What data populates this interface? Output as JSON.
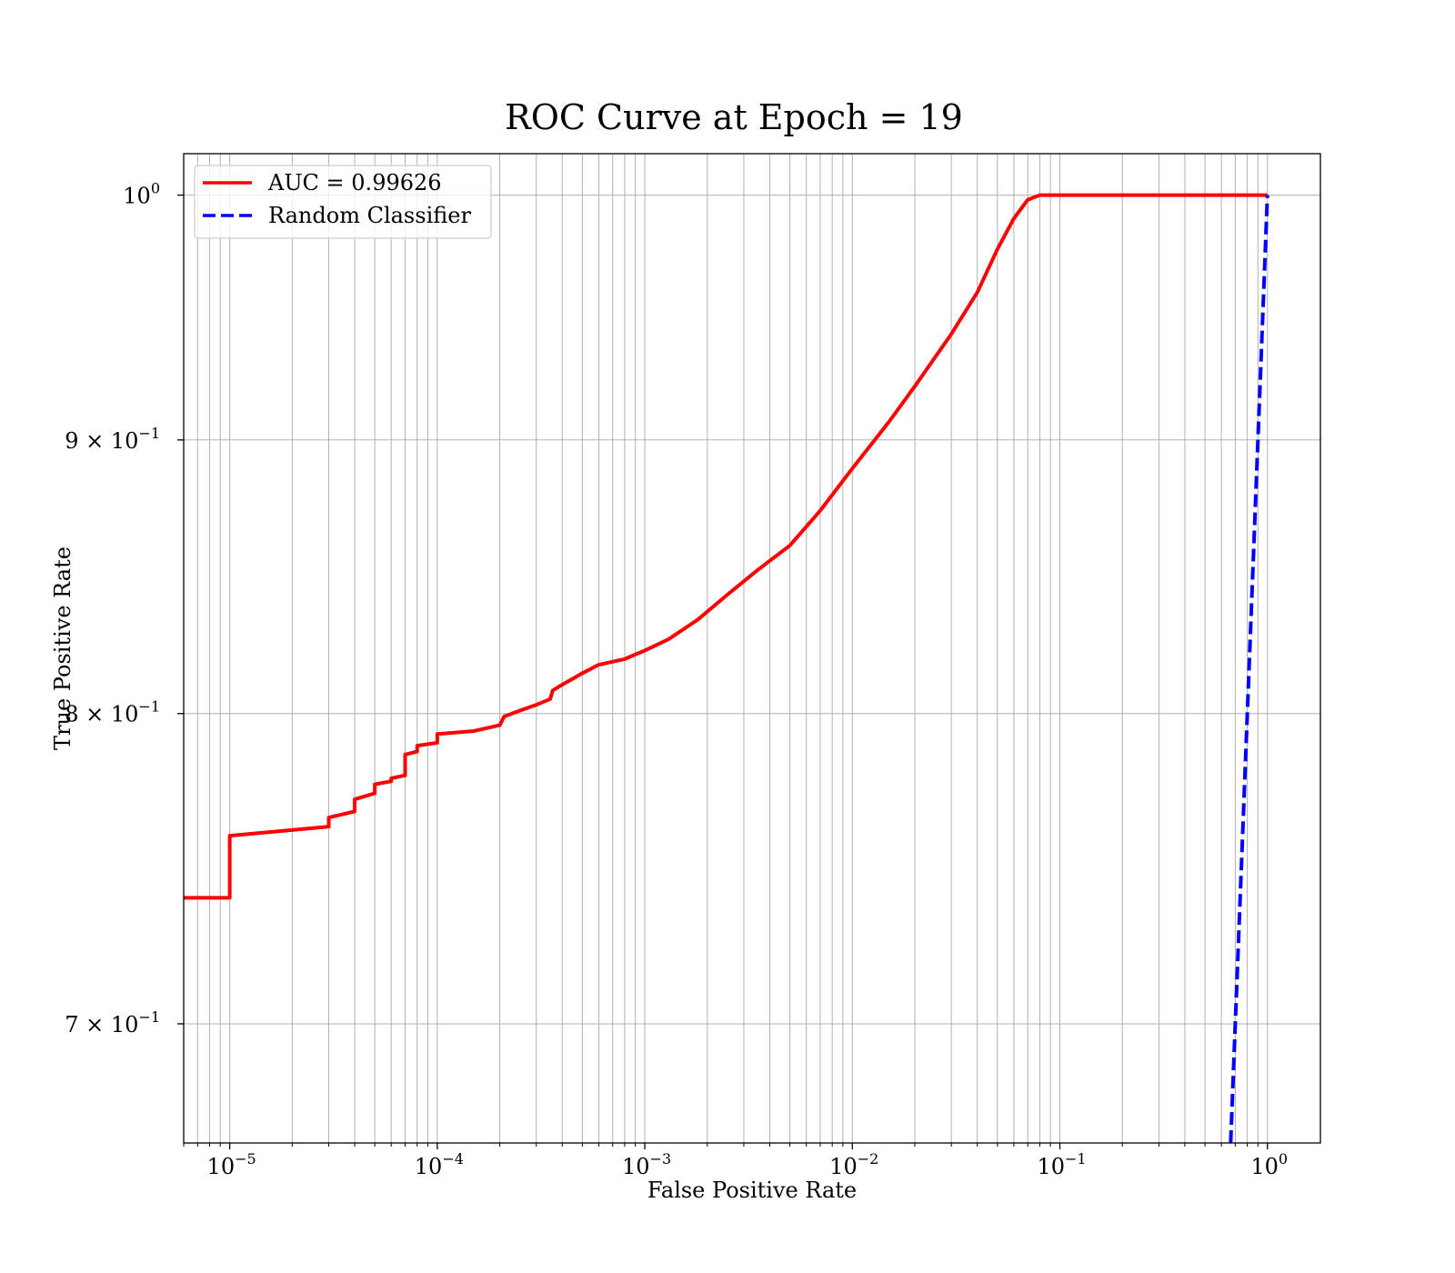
{
  "chart_data": {
    "type": "line",
    "title": "ROC Curve at Epoch = 19",
    "xlabel": "False Positive Rate",
    "ylabel": "True Positive Rate",
    "xscale": "log",
    "yscale": "log",
    "xlim": [
      6e-06,
      1.8
    ],
    "ylim": [
      0.665,
      1.018
    ],
    "grid": "both",
    "legend_position": "top-left",
    "x_ticks": [
      {
        "value": 1e-05,
        "base": "10",
        "exp": "−5"
      },
      {
        "value": 0.0001,
        "base": "10",
        "exp": "−4"
      },
      {
        "value": 0.001,
        "base": "10",
        "exp": "−3"
      },
      {
        "value": 0.01,
        "base": "10",
        "exp": "−2"
      },
      {
        "value": 0.1,
        "base": "10",
        "exp": "−1"
      },
      {
        "value": 1,
        "base": "10",
        "exp": "0"
      }
    ],
    "y_ticks": [
      {
        "value": 1.0,
        "base": "10",
        "exp": "0"
      },
      {
        "value": 0.9,
        "base": "9 × 10",
        "exp": "−1"
      },
      {
        "value": 0.8,
        "base": "8 × 10",
        "exp": "−1"
      },
      {
        "value": 0.7,
        "base": "7 × 10",
        "exp": "−1"
      }
    ],
    "series": [
      {
        "name": "AUC = 0.99626",
        "color": "#ff0000",
        "style": "solid",
        "x": [
          6e-06,
          1e-05,
          1e-05,
          3e-05,
          3e-05,
          4e-05,
          4e-05,
          5e-05,
          5e-05,
          6e-05,
          6e-05,
          7e-05,
          7e-05,
          8e-05,
          8e-05,
          0.0001,
          0.0001,
          0.00015,
          0.0002,
          0.00021,
          0.00025,
          0.0003,
          0.00035,
          0.00036,
          0.0004,
          0.0005,
          0.0006,
          0.0008,
          0.001,
          0.0013,
          0.0018,
          0.0025,
          0.0035,
          0.005,
          0.007,
          0.01,
          0.015,
          0.02,
          0.03,
          0.04,
          0.05,
          0.06,
          0.07,
          0.08,
          0.1,
          0.3,
          1.0
        ],
        "y": [
          0.739,
          0.739,
          0.759,
          0.762,
          0.765,
          0.767,
          0.771,
          0.773,
          0.776,
          0.777,
          0.778,
          0.779,
          0.786,
          0.787,
          0.789,
          0.79,
          0.793,
          0.794,
          0.796,
          0.799,
          0.801,
          0.803,
          0.805,
          0.808,
          0.81,
          0.814,
          0.817,
          0.819,
          0.822,
          0.826,
          0.833,
          0.842,
          0.851,
          0.86,
          0.873,
          0.889,
          0.907,
          0.921,
          0.942,
          0.959,
          0.977,
          0.99,
          0.998,
          1.0,
          1.0,
          1.0,
          1.0
        ]
      },
      {
        "name": "Random Classifier",
        "color": "#0000ff",
        "style": "dashed",
        "x": [
          0.665,
          0.7,
          0.8,
          0.9,
          1.0
        ],
        "y": [
          0.665,
          0.7,
          0.8,
          0.9,
          1.0
        ]
      }
    ]
  }
}
